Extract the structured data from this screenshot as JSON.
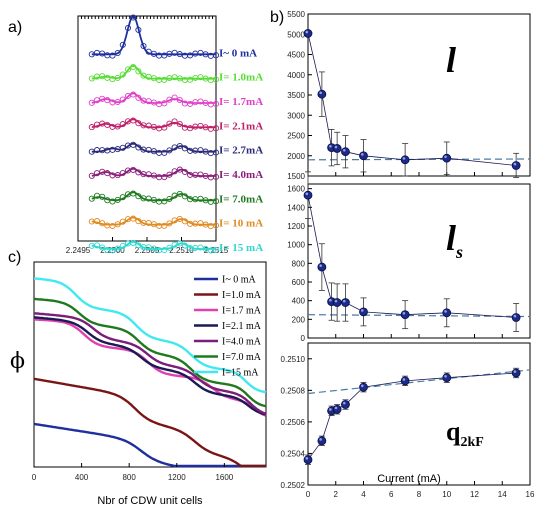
{
  "panel_labels": {
    "a": "a)",
    "b": "b)",
    "c": "c)"
  },
  "chart_data": [
    {
      "panel": "a",
      "type": "line",
      "x_ticks": [
        "2.2495",
        "2.2500",
        "2.2505",
        "2.2510",
        "2.2515"
      ],
      "xlim": [
        2.2495,
        2.2515
      ],
      "series": [
        {
          "name": "I~ 0   mA",
          "color": "#1f2f9e",
          "peaks": [
            {
              "x": 2.2503,
              "height": 1.0
            }
          ]
        },
        {
          "name": "I= 1.0mA",
          "color": "#55dd33",
          "peaks": [
            {
              "x": 2.2503,
              "height": 0.8
            },
            {
              "x": 2.2499,
              "height": 0.12
            }
          ]
        },
        {
          "name": "I= 1.7mA",
          "color": "#e040c8",
          "peaks": [
            {
              "x": 2.2503,
              "height": 0.6
            },
            {
              "x": 2.2499,
              "height": 0.25
            },
            {
              "x": 2.2509,
              "height": 0.25
            }
          ]
        },
        {
          "name": "I= 2.1mA",
          "color": "#c0206a",
          "peaks": [
            {
              "x": 2.2503,
              "height": 0.5
            },
            {
              "x": 2.2499,
              "height": 0.22
            },
            {
              "x": 2.2509,
              "height": 0.28
            }
          ]
        },
        {
          "name": "I= 2.7mA",
          "color": "#2a2a7a",
          "peaks": [
            {
              "x": 2.2503,
              "height": 0.5
            },
            {
              "x": 2.25,
              "height": 0.2
            },
            {
              "x": 2.251,
              "height": 0.35
            }
          ]
        },
        {
          "name": "I= 4.0mA",
          "color": "#8a1e7a",
          "peaks": [
            {
              "x": 2.2503,
              "height": 0.45
            },
            {
              "x": 2.2499,
              "height": 0.25
            },
            {
              "x": 2.251,
              "height": 0.4
            }
          ]
        },
        {
          "name": "I= 7.0mA",
          "color": "#1f7a1f",
          "peaks": [
            {
              "x": 2.2503,
              "height": 0.5
            },
            {
              "x": 2.2498,
              "height": 0.2
            },
            {
              "x": 2.251,
              "height": 0.4
            }
          ]
        },
        {
          "name": "I= 10 mA",
          "color": "#e08a20",
          "peaks": [
            {
              "x": 2.2503,
              "height": 0.45
            },
            {
              "x": 2.2497,
              "height": 0.2
            },
            {
              "x": 2.251,
              "height": 0.35
            }
          ]
        },
        {
          "name": "I= 15 mA",
          "color": "#30d8d0",
          "peaks": [
            {
              "x": 2.2503,
              "height": 0.45
            },
            {
              "x": 2.2497,
              "height": 0.2
            },
            {
              "x": 2.251,
              "height": 0.35
            }
          ]
        }
      ]
    },
    {
      "panel": "b-top",
      "type": "scatter",
      "label": "l",
      "ylim": [
        1500,
        5500
      ],
      "y_ticks": [
        "1500",
        "2000",
        "2500",
        "3000",
        "3500",
        "4000",
        "4500",
        "5000",
        "5500"
      ],
      "x": [
        0,
        1,
        1.7,
        2.1,
        2.7,
        4,
        7,
        10,
        15
      ],
      "values": [
        5020,
        3520,
        2200,
        2180,
        2100,
        2000,
        1900,
        1940,
        1760
      ],
      "errors": [
        0,
        550,
        450,
        400,
        400,
        400,
        400,
        400,
        300
      ],
      "fit_line": {
        "x": [
          0,
          16
        ],
        "y": [
          1900,
          1920
        ]
      }
    },
    {
      "panel": "b-mid",
      "type": "scatter",
      "label": "l",
      "label_sub": "s",
      "ylim": [
        0,
        1650
      ],
      "y_ticks": [
        "0",
        "200",
        "400",
        "600",
        "800",
        "1000",
        "1200",
        "1400",
        "1600"
      ],
      "x": [
        0,
        1,
        1.7,
        2.1,
        2.7,
        4,
        7,
        10,
        15
      ],
      "values": [
        1530,
        760,
        390,
        380,
        380,
        280,
        250,
        270,
        220
      ],
      "errors": [
        250,
        250,
        200,
        200,
        200,
        150,
        150,
        150,
        150
      ],
      "fit_line": {
        "x": [
          0,
          16
        ],
        "y": [
          250,
          230
        ]
      }
    },
    {
      "panel": "b-bottom",
      "type": "scatter",
      "label": "q",
      "label_sub": "2kF",
      "ylim": [
        0.2502,
        0.2511
      ],
      "y_ticks": [
        "0.2502",
        "0.2504",
        "0.2506",
        "0.2508",
        "0.2510"
      ],
      "x_ticks": [
        "0",
        "2",
        "4",
        "6",
        "8",
        "10",
        "12",
        "14",
        "16"
      ],
      "xlim": [
        0,
        16
      ],
      "xlabel": "Current (mA)",
      "x": [
        0,
        1,
        1.7,
        2.1,
        2.7,
        4,
        7,
        10,
        15
      ],
      "values": [
        0.25036,
        0.25048,
        0.25067,
        0.25068,
        0.25071,
        0.25082,
        0.25086,
        0.25088,
        0.25091
      ],
      "errors": [
        3e-05,
        3e-05,
        3e-05,
        3e-05,
        3e-05,
        3e-05,
        3e-05,
        3e-05,
        3e-05
      ],
      "fit_line": {
        "x": [
          0,
          16
        ],
        "y": [
          0.25078,
          0.25093
        ]
      }
    },
    {
      "panel": "c",
      "type": "line",
      "ylabel": "ϕ",
      "xlabel": "Nbr of CDW unit cells",
      "x_ticks": [
        "0",
        "400",
        "800",
        "1200",
        "1600"
      ],
      "xlim": [
        0,
        1950
      ],
      "series": [
        {
          "name": "I~ 0   mA",
          "color": "#1f2f9e"
        },
        {
          "name": "I=1.0 mA",
          "color": "#7a1515"
        },
        {
          "name": "I=1.7 mA",
          "color": "#e040b0"
        },
        {
          "name": "I=2.1 mA",
          "color": "#1a1a55"
        },
        {
          "name": "I=4.0 mA",
          "color": "#7a1e7a"
        },
        {
          "name": "I=7.0 mA",
          "color": "#1f7a1f"
        },
        {
          "name": "I=15  mA",
          "color": "#40e8f0"
        }
      ]
    }
  ]
}
